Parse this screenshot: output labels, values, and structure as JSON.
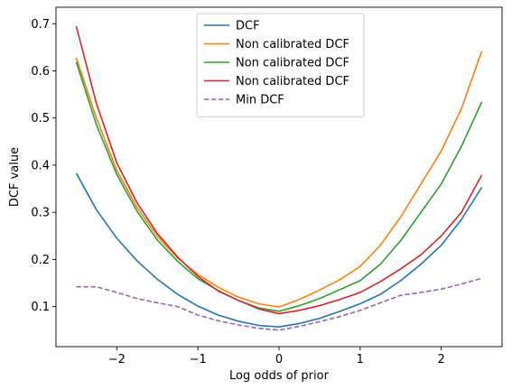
{
  "chart_data": {
    "type": "line",
    "title": "",
    "xlabel": "Log odds of prior",
    "ylabel": "DCF value",
    "xlim": [
      -2.75,
      2.75
    ],
    "ylim": [
      0.015,
      0.735
    ],
    "xticks": [
      -2,
      -1,
      0,
      1,
      2
    ],
    "xtick_labels": [
      "−2",
      "−1",
      "0",
      "1",
      "2"
    ],
    "yticks": [
      0.1,
      0.2,
      0.3,
      0.4,
      0.5,
      0.6,
      0.7
    ],
    "ytick_labels": [
      "0.1",
      "0.2",
      "0.3",
      "0.4",
      "0.5",
      "0.6",
      "0.7"
    ],
    "grid": false,
    "legend_position": "top-center",
    "x": [
      -2.5,
      -2.25,
      -2.0,
      -1.75,
      -1.5,
      -1.25,
      -1.0,
      -0.75,
      -0.5,
      -0.25,
      0.0,
      0.25,
      0.5,
      0.75,
      1.0,
      1.25,
      1.5,
      1.75,
      2.0,
      2.25,
      2.5
    ],
    "series": [
      {
        "name": "DCF",
        "color": "#1f77b4",
        "dashed": false,
        "values": [
          0.383,
          0.305,
          0.245,
          0.197,
          0.158,
          0.126,
          0.101,
          0.082,
          0.069,
          0.06,
          0.057,
          0.064,
          0.075,
          0.09,
          0.106,
          0.126,
          0.155,
          0.19,
          0.23,
          0.285,
          0.353
        ]
      },
      {
        "name": "Non calibrated DCF",
        "color": "#ff7f0e",
        "dashed": false,
        "values": [
          0.628,
          0.499,
          0.389,
          0.31,
          0.249,
          0.203,
          0.168,
          0.141,
          0.12,
          0.106,
          0.099,
          0.115,
          0.135,
          0.157,
          0.185,
          0.23,
          0.29,
          0.36,
          0.43,
          0.52,
          0.642
        ]
      },
      {
        "name": "Non calibrated DCF",
        "color": "#2ca02c",
        "dashed": false,
        "values": [
          0.619,
          0.485,
          0.38,
          0.302,
          0.241,
          0.196,
          0.159,
          0.134,
          0.113,
          0.097,
          0.09,
          0.102,
          0.117,
          0.136,
          0.155,
          0.19,
          0.24,
          0.3,
          0.36,
          0.44,
          0.534
        ]
      },
      {
        "name": "Non calibrated DCF",
        "color": "#d62728",
        "dashed": false,
        "values": [
          0.695,
          0.53,
          0.405,
          0.32,
          0.255,
          0.205,
          0.164,
          0.133,
          0.113,
          0.095,
          0.085,
          0.092,
          0.102,
          0.115,
          0.13,
          0.153,
          0.18,
          0.21,
          0.25,
          0.3,
          0.379
        ]
      },
      {
        "name": "Min DCF",
        "color": "#9467bd",
        "dashed": true,
        "values": [
          0.142,
          0.142,
          0.13,
          0.117,
          0.108,
          0.1,
          0.082,
          0.07,
          0.061,
          0.054,
          0.05,
          0.058,
          0.068,
          0.079,
          0.092,
          0.108,
          0.124,
          0.13,
          0.137,
          0.148,
          0.16
        ]
      }
    ]
  }
}
